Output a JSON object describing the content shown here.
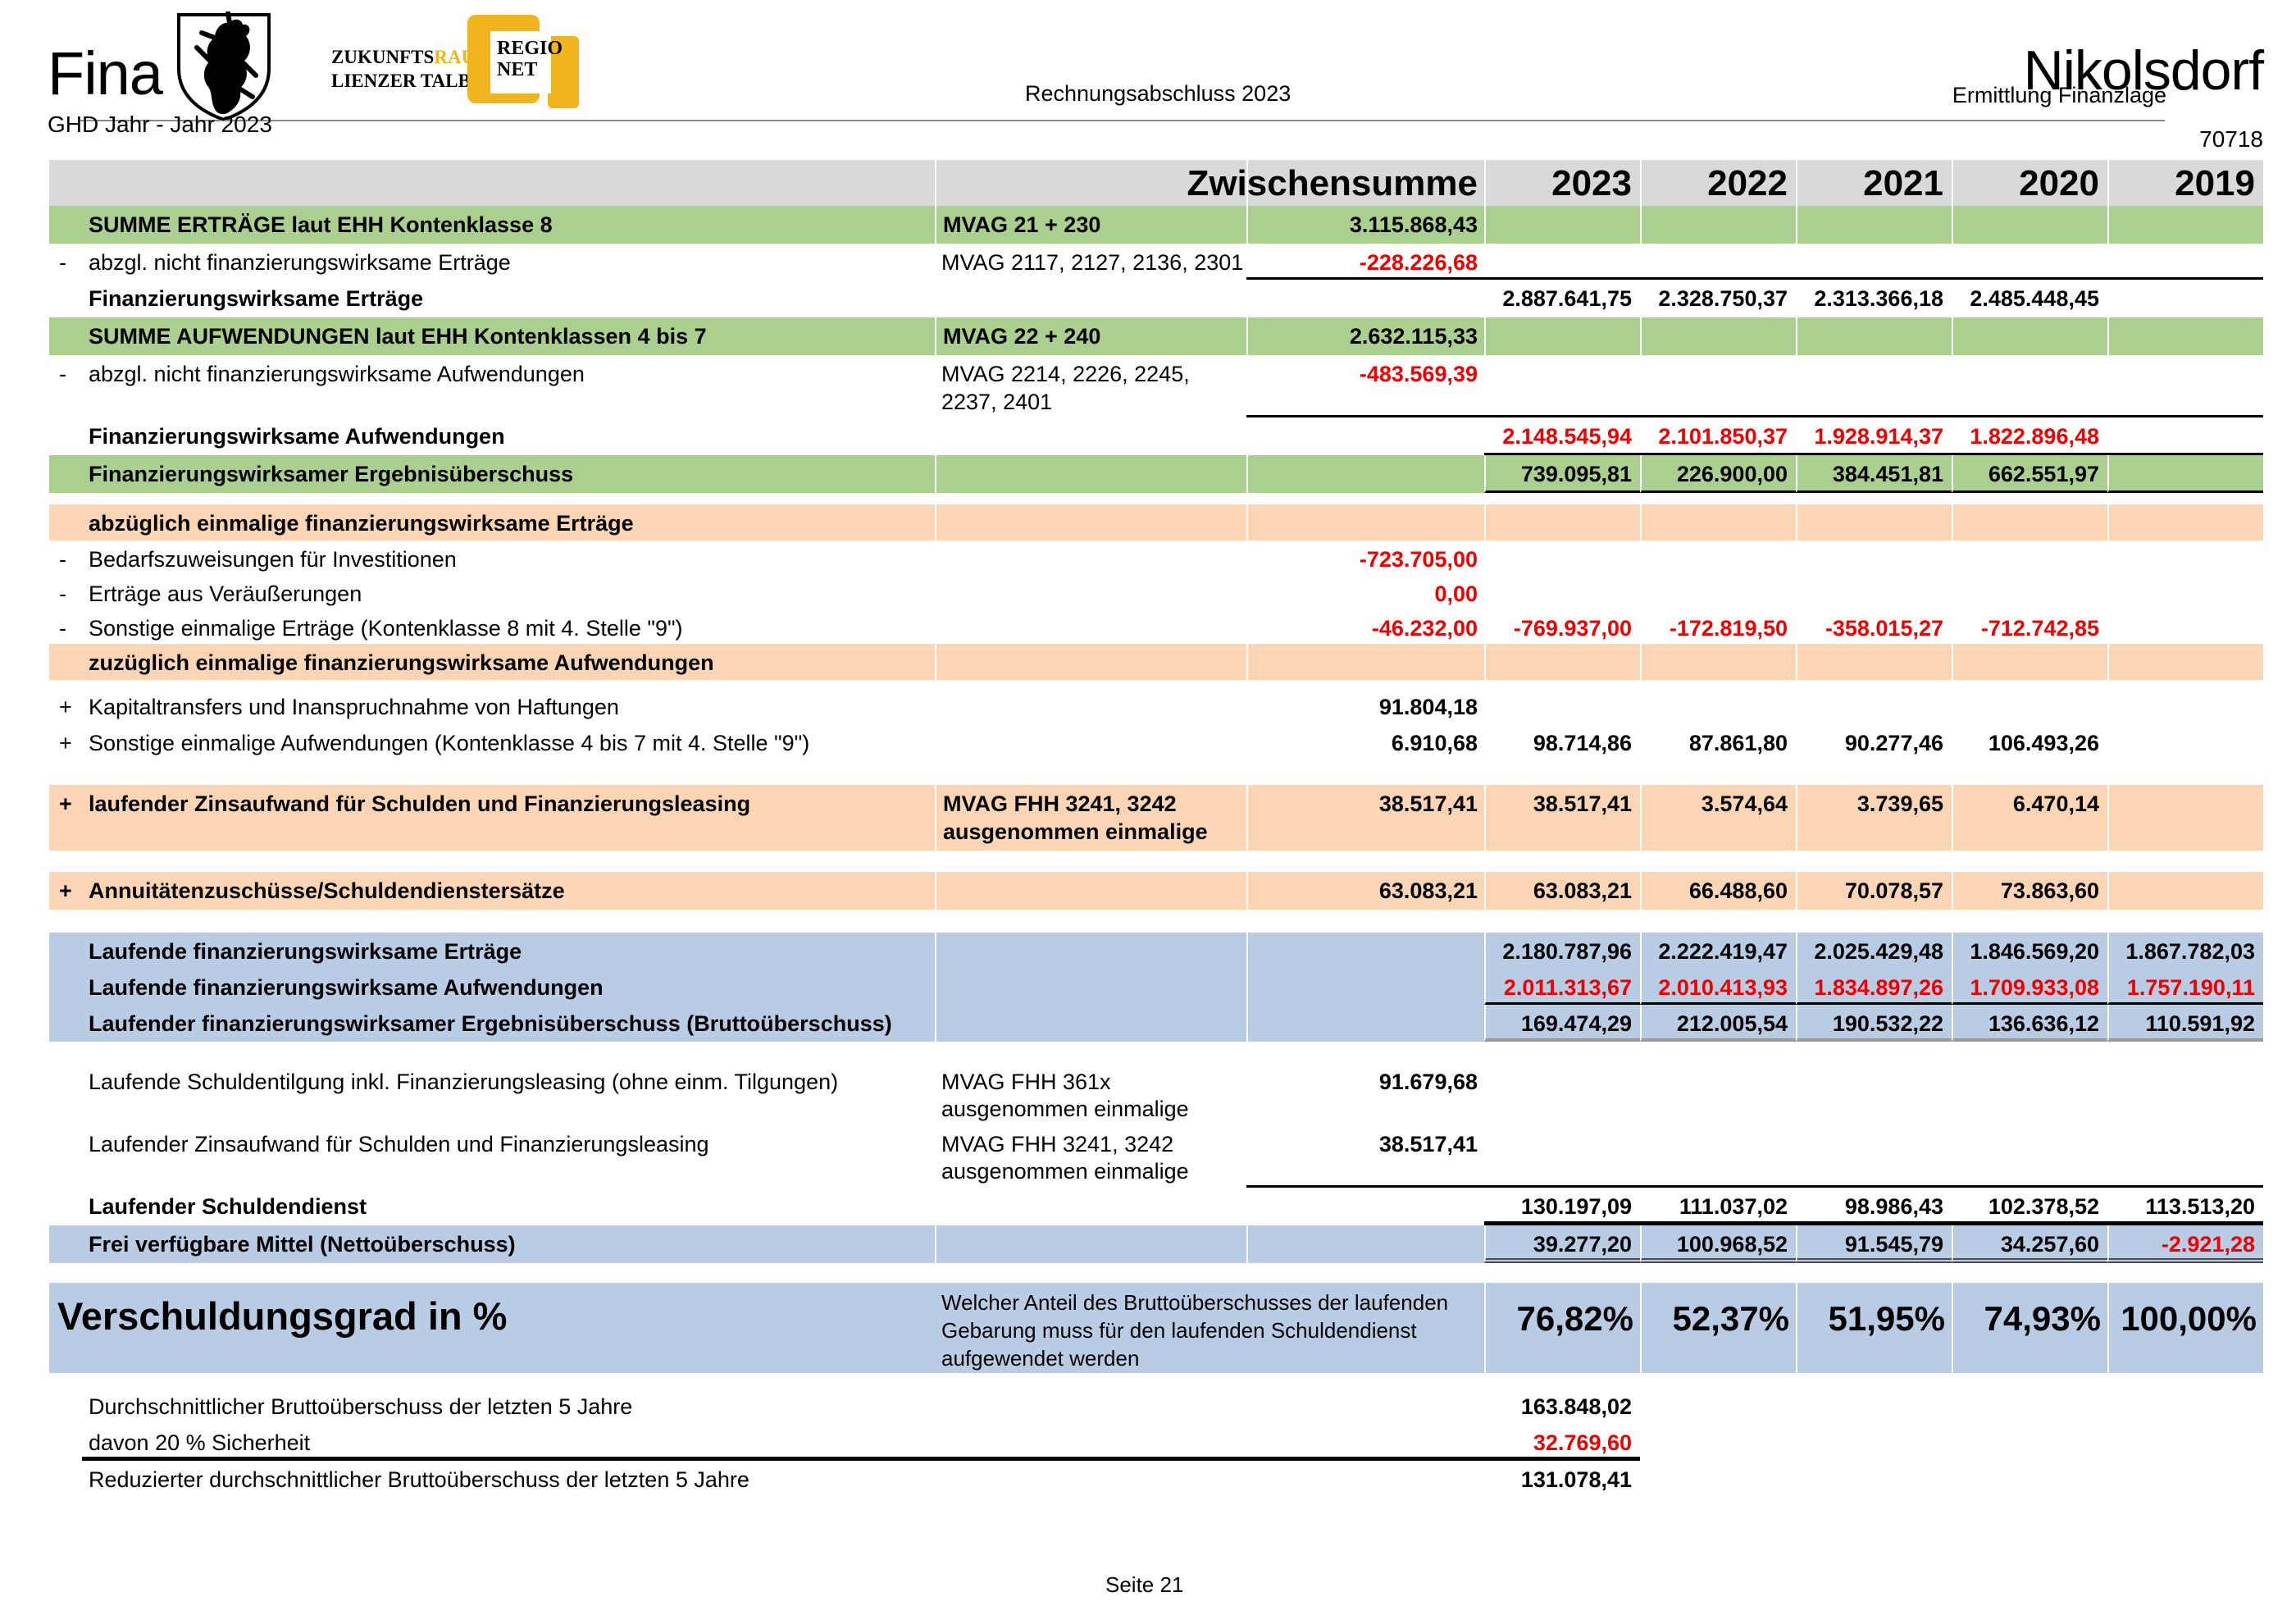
{
  "colors": {
    "green": "#a9d08e",
    "orange": "#fcd5b4",
    "blue": "#b8cce4",
    "grey": "#d9d9d9",
    "red": "#ee0000",
    "logo-yellow": "#f0b41c"
  },
  "header": {
    "title_left": "Fina",
    "brand_line1_black": "ZUKUNFTS",
    "brand_line1_yellow": "RAUM®",
    "brand_line2": "LIENZER TALBODEN",
    "regio_line1": "REGIO",
    "regio_line2": "NET",
    "doc_title": "Rechnungsabschluss 2023",
    "subtitle_right": "Ermittlung Finanzlage",
    "municipality": "Nikolsdorf",
    "sub_left": "GHD Jahr - Jahr 2023",
    "code_right": "70718"
  },
  "footer": {
    "page_label": "Seite 21"
  },
  "table": {
    "columns": [
      "sign",
      "label",
      "mvag",
      "zs",
      "y2023",
      "y2022",
      "y2021",
      "y2020",
      "y2019"
    ],
    "rows": [
      {
        "style": "head",
        "h": 56,
        "zs": "Zwischensumme",
        "y2023": "2023",
        "y2022": "2022",
        "y2021": "2021",
        "y2020": "2020",
        "y2019": "2019"
      },
      {
        "style": "green",
        "bold": true,
        "h": 46,
        "label": "SUMME ERTRÄGE laut EHH Kontenklasse 8",
        "mvag": "MVAG 21 + 230",
        "zs": "3.115.868,43"
      },
      {
        "style": "white",
        "h": 42,
        "sign": "-",
        "label": "abzgl. nicht finanzierungswirksame Erträge",
        "mvag": "MVAG 2117, 2127, 2136, 2301",
        "zs": "-228.226,68",
        "red": [
          "zs"
        ],
        "rule": {
          "from": "zs",
          "to": "y2019",
          "w": 3,
          "color": "#000"
        }
      },
      {
        "style": "white",
        "bold": true,
        "h": 46,
        "label": "Finanzierungswirksame Erträge",
        "y2023": "2.887.641,75",
        "y2022": "2.328.750,37",
        "y2021": "2.313.366,18",
        "y2020": "2.485.448,45"
      },
      {
        "style": "green",
        "bold": true,
        "h": 46,
        "label": "SUMME AUFWENDUNGEN laut EHH Kontenklassen 4 bis 7",
        "mvag": "MVAG 22 + 240",
        "zs": "2.632.115,33"
      },
      {
        "style": "white",
        "h": 76,
        "sign": "-",
        "label": "abzgl. nicht finanzierungswirksame Aufwendungen",
        "mvag": "MVAG 2214, 2226, 2245,\n2237, 2401",
        "zs": "-483.569,39",
        "red": [
          "zs"
        ],
        "rule": {
          "from": "zs",
          "to": "y2019",
          "w": 3,
          "color": "#000"
        }
      },
      {
        "style": "white",
        "bold": true,
        "h": 46,
        "label": "Finanzierungswirksame Aufwendungen",
        "y2023": "2.148.545,94",
        "y2022": "2.101.850,37",
        "y2021": "1.928.914,37",
        "y2020": "1.822.896,48",
        "red": [
          "y2023",
          "y2022",
          "y2021",
          "y2020"
        ],
        "rule": {
          "from": "y2023",
          "to": "y2019",
          "w": 3,
          "color": "#000"
        }
      },
      {
        "style": "green",
        "bold": true,
        "h": 46,
        "label": "Finanzierungswirksamer Ergebnisüberschuss",
        "y2023": "739.095,81",
        "y2022": "226.900,00",
        "y2021": "384.451,81",
        "y2020": "662.551,97",
        "rule": {
          "from": "y2023",
          "to": "y2019",
          "w": 3,
          "color": "#000"
        }
      },
      {
        "style": "spacer",
        "h": 14
      },
      {
        "style": "orange",
        "bold": true,
        "h": 44,
        "label": "abzüglich einmalige finanzierungswirksame Erträge"
      },
      {
        "style": "white",
        "h": 42,
        "sign": "-",
        "label": "Bedarfszuweisungen für Investitionen",
        "zs": "-723.705,00",
        "red": [
          "zs"
        ]
      },
      {
        "style": "white",
        "h": 42,
        "sign": "-",
        "label": "Erträge aus Veräußerungen",
        "zs": "0,00",
        "red": [
          "zs"
        ]
      },
      {
        "style": "white",
        "h": 42,
        "sign": "-",
        "label": "Sonstige einmalige Erträge (Kontenklasse 8 mit 4. Stelle \"9\")",
        "zs": "-46.232,00",
        "y2023": "-769.937,00",
        "y2022": "-172.819,50",
        "y2021": "-358.015,27",
        "y2020": "-712.742,85",
        "red": [
          "zs",
          "y2023",
          "y2022",
          "y2021",
          "y2020"
        ]
      },
      {
        "style": "orange",
        "bold": true,
        "h": 44,
        "label": "zuzüglich einmalige finanzierungswirksame Aufwendungen"
      },
      {
        "style": "spacer",
        "h": 10
      },
      {
        "style": "white",
        "h": 44,
        "sign": "+",
        "label": "Kapitaltransfers und Inanspruchnahme von Haftungen",
        "zs": "91.804,18"
      },
      {
        "style": "white",
        "h": 44,
        "sign": "+",
        "label": "Sonstige einmalige Aufwendungen (Kontenklasse 4 bis 7 mit 4. Stelle \"9\")",
        "zs": "6.910,68",
        "y2023": "98.714,86",
        "y2022": "87.861,80",
        "y2021": "90.277,46",
        "y2020": "106.493,26"
      },
      {
        "style": "spacer",
        "h": 30
      },
      {
        "style": "orange",
        "bold": true,
        "h": 80,
        "sign": "+",
        "label": "laufender Zinsaufwand für Schulden und Finanzierungsleasing",
        "mvag": "MVAG FHH 3241, 3242\nausgenommen einmalige",
        "zs": "38.517,41",
        "y2023": "38.517,41",
        "y2022": "3.574,64",
        "y2021": "3.739,65",
        "y2020": "6.470,14"
      },
      {
        "style": "spacer",
        "h": 26
      },
      {
        "style": "orange",
        "bold": true,
        "h": 46,
        "sign": "+",
        "label": "Annuitätenzuschüsse/Schuldendienstersätze",
        "zs": "63.083,21",
        "y2023": "63.083,21",
        "y2022": "66.488,60",
        "y2021": "70.078,57",
        "y2020": "73.863,60"
      },
      {
        "style": "spacer",
        "h": 28
      },
      {
        "style": "blue",
        "bold": true,
        "h": 44,
        "label": "Laufende finanzierungswirksame Erträge",
        "y2023": "2.180.787,96",
        "y2022": "2.222.419,47",
        "y2021": "2.025.429,48",
        "y2020": "1.846.569,20",
        "y2019": "1.867.782,03"
      },
      {
        "style": "blue",
        "bold": true,
        "h": 44,
        "label": "Laufende finanzierungswirksame Aufwendungen",
        "y2023": "2.011.313,67",
        "y2022": "2.010.413,93",
        "y2021": "1.834.897,26",
        "y2020": "1.709.933,08",
        "y2019": "1.757.190,11",
        "red": [
          "y2023",
          "y2022",
          "y2021",
          "y2020",
          "y2019"
        ],
        "rule": {
          "from": "y2023",
          "to": "y2019",
          "w": 3,
          "color": "#000"
        }
      },
      {
        "style": "blue",
        "bold": true,
        "h": 44,
        "label": "Laufender finanzierungswirksamer Ergebnisüberschuss (Bruttoüberschuss)",
        "y2023": "169.474,29",
        "y2022": "212.005,54",
        "y2021": "190.532,22",
        "y2020": "136.636,12",
        "y2019": "110.591,92",
        "rule": {
          "from": "y2023",
          "to": "y2019",
          "w": 4,
          "color": "#9a9a9a"
        }
      },
      {
        "style": "spacer",
        "h": 26
      },
      {
        "style": "white",
        "h": 76,
        "label": "Laufende Schuldentilgung inkl. Finanzierungsleasing (ohne einm. Tilgungen)",
        "mvag": "MVAG FHH 361x\nausgenommen einmalige",
        "zs": "91.679,68"
      },
      {
        "style": "white",
        "h": 76,
        "label": "Laufender Zinsaufwand für Schulden und Finanzierungsleasing",
        "mvag": "MVAG FHH 3241, 3242\nausgenommen einmalige",
        "zs": "38.517,41",
        "rule": {
          "from": "zs",
          "to": "y2019",
          "w": 3,
          "color": "#000"
        }
      },
      {
        "style": "white",
        "bold": true,
        "h": 46,
        "label": "Laufender Schuldendienst",
        "y2023": "130.197,09",
        "y2022": "111.037,02",
        "y2021": "98.986,43",
        "y2020": "102.378,52",
        "y2019": "113.513,20",
        "rule": {
          "from": "y2023",
          "to": "y2019",
          "w": 5,
          "color": "#000"
        }
      },
      {
        "style": "blue",
        "bold": true,
        "h": 44,
        "label": "Frei verfügbare Mittel (Nettoüberschuss)",
        "y2023": "39.277,20",
        "y2022": "100.968,52",
        "y2021": "91.545,79",
        "y2020": "34.257,60",
        "y2019": "-2.921,28",
        "red": [
          "y2019"
        ],
        "rule": {
          "from": "y2023",
          "to": "y2019",
          "w": 6,
          "color": "#4d4d4d",
          "line": "double"
        }
      },
      {
        "style": "spacer",
        "h": 24
      },
      {
        "style": "bluebig",
        "h": 96,
        "label": "Verschuldungsgrad in %",
        "desc": "Welcher Anteil des Bruttoüberschusses der laufenden Gebarung muss für den laufenden Schuldendienst aufgewendet werden",
        "y2023": "76,82%",
        "y2022": "52,37%",
        "y2021": "51,95%",
        "y2020": "74,93%",
        "y2019": "100,00%"
      },
      {
        "style": "spacer",
        "h": 18
      },
      {
        "style": "white",
        "h": 44,
        "label": "Durchschnittlicher Bruttoüberschuss der letzten 5 Jahre",
        "y2023": "163.848,02"
      },
      {
        "style": "white",
        "h": 42,
        "label": "davon 20 % Sicherheit",
        "y2023": "32.769,60",
        "red": [
          "y2023"
        ],
        "rule": {
          "from": "label",
          "to": "y2023",
          "w": 5,
          "color": "#000"
        }
      },
      {
        "style": "white",
        "h": 46,
        "label": "Reduzierter durchschnittlicher Bruttoüberschuss der letzten 5 Jahre",
        "y2023": "131.078,41"
      }
    ]
  }
}
